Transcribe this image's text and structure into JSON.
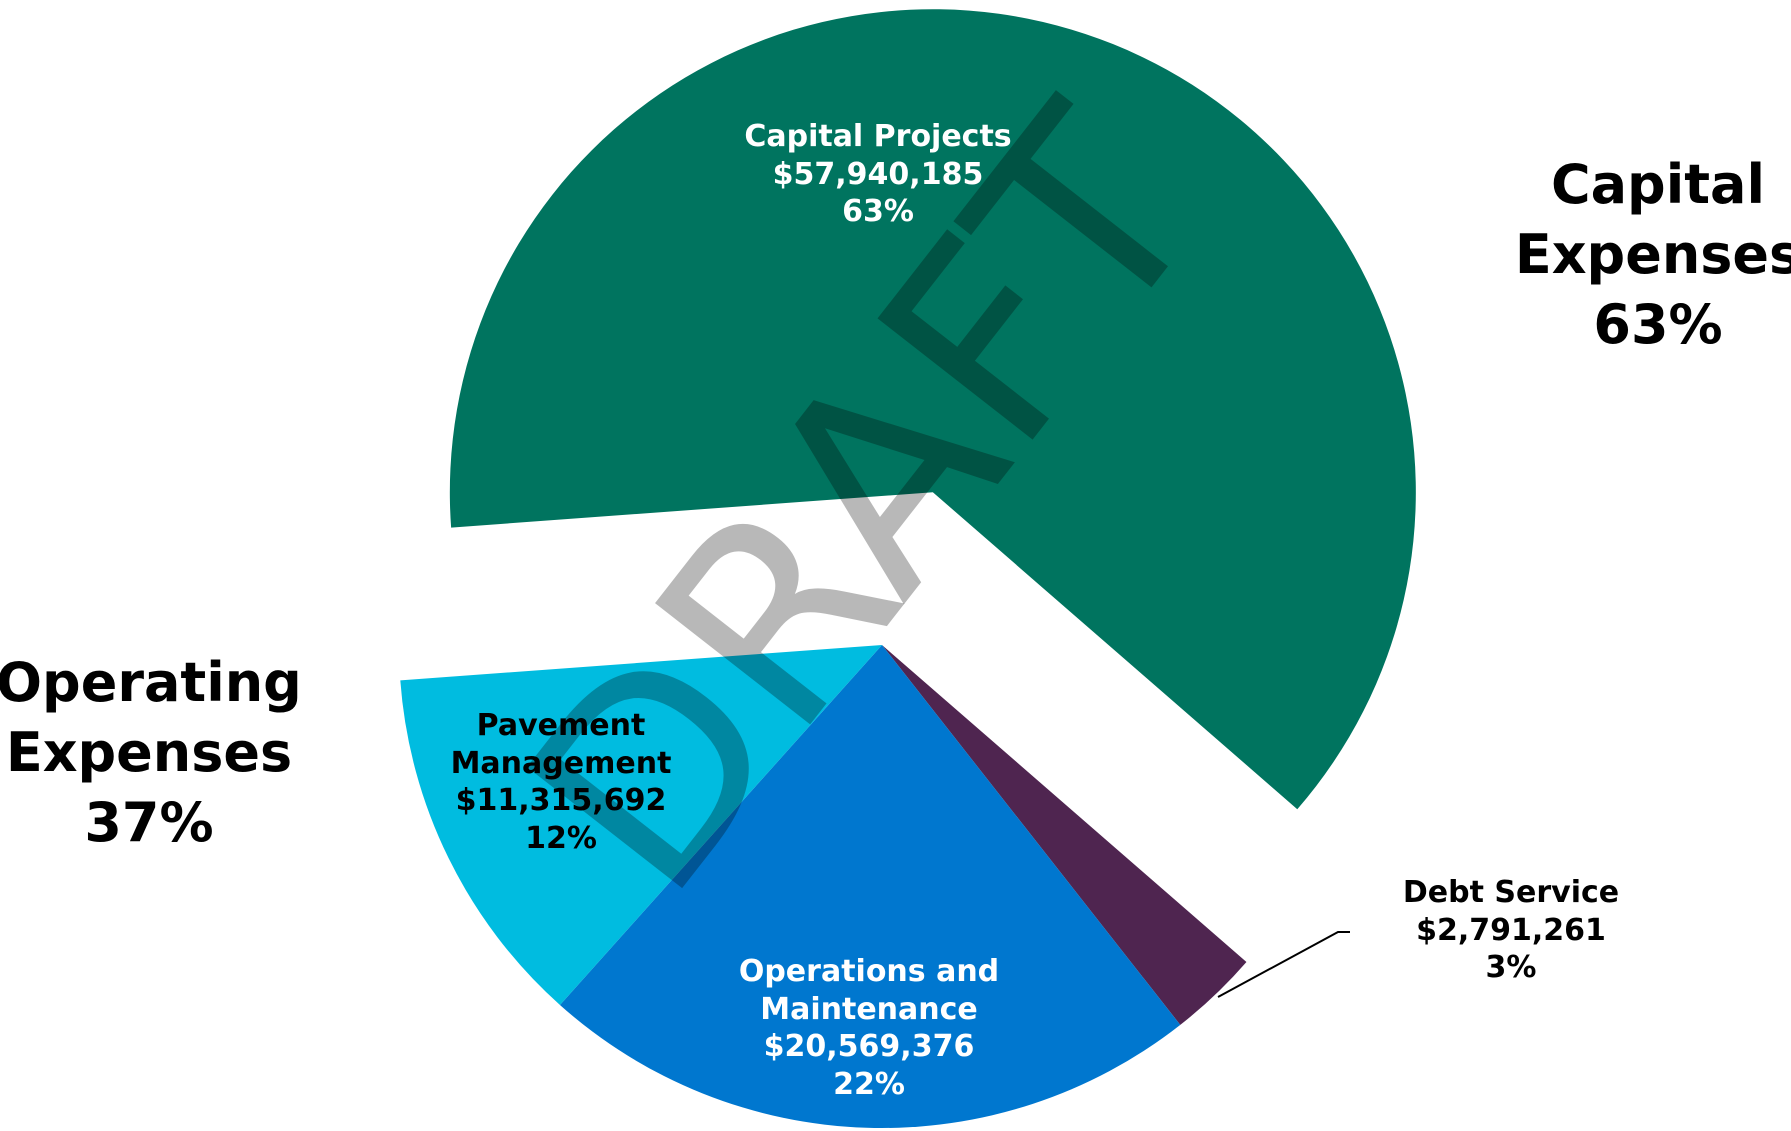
{
  "chart_data": {
    "type": "pie",
    "categories": [
      "Capital Projects",
      "Debt Service",
      "Operations and Maintenance",
      "Pavement Management"
    ],
    "values": [
      57940185,
      2791261,
      20569376,
      11315692
    ],
    "value_labels": [
      "$57,940,185",
      "$2,791,261",
      "$20,569,376",
      "$11,315,692"
    ],
    "percents": [
      {
        "value": 63,
        "label": "63%"
      },
      {
        "value": 3,
        "label": "3%"
      },
      {
        "value": 22,
        "label": "22%"
      },
      {
        "value": 12,
        "label": "12%"
      }
    ],
    "colors": [
      "#00745f",
      "#4f2550",
      "#0077cf",
      "#00bce0"
    ],
    "groups": [
      {
        "name": "Capital Expenses",
        "share": {
          "value": 63,
          "label": "63%"
        }
      },
      {
        "name": "Operating Expenses",
        "share": {
          "value": 37,
          "label": "37%"
        }
      }
    ],
    "watermark": "DRAFT"
  }
}
